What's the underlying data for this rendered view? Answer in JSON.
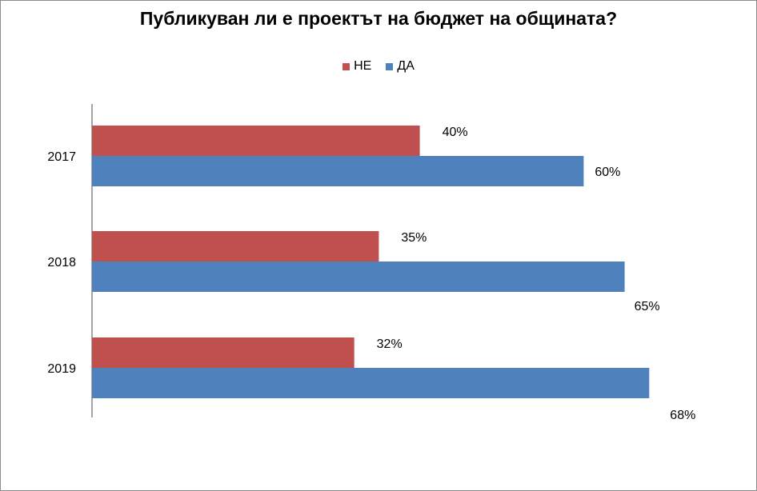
{
  "chart_data": {
    "type": "bar",
    "orientation": "horizontal",
    "title": "Публикуван ли е проектът на бюджет на общината?",
    "categories": [
      "2017",
      "2018",
      "2019"
    ],
    "series": [
      {
        "name": "НЕ",
        "color": "#C0504D",
        "values": [
          40,
          35,
          32
        ],
        "labels": [
          "40%",
          "35%",
          "32%"
        ]
      },
      {
        "name": "ДА",
        "color": "#4F81BD",
        "values": [
          60,
          65,
          68
        ],
        "labels": [
          "60%",
          "65%",
          "68%"
        ]
      }
    ],
    "xlim": [
      0,
      100
    ],
    "grid": false,
    "legend_position": "top"
  }
}
